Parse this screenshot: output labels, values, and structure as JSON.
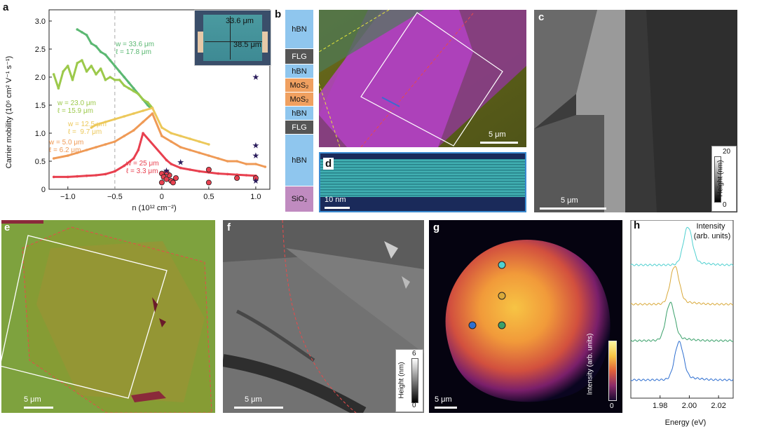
{
  "panel_labels": {
    "a": "a",
    "b": "b",
    "c": "c",
    "d": "d",
    "e": "e",
    "f": "f",
    "g": "g",
    "h": "h"
  },
  "colors": {
    "green": "#5bb872",
    "lime": "#9cc94b",
    "yellow": "#ecc85a",
    "orange": "#ef9a56",
    "red": "#e8404f",
    "navy": "#2b1d5c",
    "cyan": "#4fd0d0",
    "gold": "#d9a93a",
    "teal": "#3aa06a",
    "blue": "#2f6fd0",
    "hbn": "#8fc6ee",
    "flg": "#555555",
    "mos2": "#f0a060",
    "sio2": "#c08bc0"
  },
  "panel_a": {
    "ylabel": "Carrier mobility (10⁶ cm² V⁻¹ s⁻¹)",
    "xlabel": "n (10¹² cm⁻²)",
    "xticks": [
      "−1.0",
      "−0.5",
      "0",
      "0.5",
      "1.0"
    ],
    "yticks": [
      "0",
      "0.5",
      "1.0",
      "1.5",
      "2.0",
      "2.5",
      "3.0"
    ],
    "annotations": [
      {
        "w": "w = 33.6 μm",
        "l": "ℓ = 17.8 μm",
        "color": "#5bb872"
      },
      {
        "w": "w = 23.0 μm",
        "l": "ℓ = 15.9 μm",
        "color": "#9cc94b"
      },
      {
        "w": "w = 12.5 μm",
        "l": "ℓ =  9.7 μm",
        "color": "#ecc85a"
      },
      {
        "w": "w = 5.0 μm",
        "l": "ℓ = 6.2 μm",
        "color": "#ef9a56"
      },
      {
        "w": "w = 25 μm",
        "l": "ℓ = 3.3 μm",
        "color": "#e8404f"
      }
    ],
    "inset": {
      "width": "33.6 μm",
      "length": "38.5 μm"
    }
  },
  "chart_data": [
    {
      "type": "scatter",
      "title": "",
      "xlabel": "n (10¹² cm⁻²)",
      "ylabel": "Carrier mobility (10⁶ cm² V⁻¹ s⁻¹)",
      "xlim": [
        -1.2,
        1.15
      ],
      "ylim": [
        0,
        3.2
      ],
      "vline": -0.5,
      "series": [
        {
          "name": "w = 33.6 μm, ℓ = 17.8 μm",
          "color": "#5bb872",
          "x": [
            -0.9,
            -0.85,
            -0.8,
            -0.75,
            -0.7,
            -0.65,
            -0.6,
            -0.55,
            -0.5,
            -0.45,
            -0.4,
            -0.35,
            -0.3,
            -0.25,
            -0.2,
            -0.15,
            -0.12
          ],
          "y": [
            2.85,
            2.8,
            2.75,
            2.6,
            2.55,
            2.45,
            2.4,
            2.3,
            2.2,
            2.1,
            2.0,
            1.9,
            1.8,
            1.7,
            1.6,
            1.5,
            1.45
          ]
        },
        {
          "name": "w = 23.0 μm, ℓ = 15.9 μm",
          "color": "#9cc94b",
          "x": [
            -1.15,
            -1.1,
            -1.05,
            -1.0,
            -0.95,
            -0.9,
            -0.85,
            -0.8,
            -0.75,
            -0.7,
            -0.65,
            -0.6,
            -0.55,
            -0.5,
            -0.45,
            -0.4,
            -0.35,
            -0.3,
            -0.25,
            -0.2,
            -0.15,
            -0.1
          ],
          "y": [
            2.05,
            1.8,
            2.1,
            2.2,
            1.95,
            2.25,
            2.3,
            2.1,
            2.2,
            2.05,
            2.15,
            1.95,
            2.0,
            1.95,
            1.95,
            1.85,
            1.8,
            1.75,
            1.7,
            1.6,
            1.55,
            1.45
          ]
        },
        {
          "name": "w = 12.5 μm, ℓ = 9.7 μm",
          "color": "#ecc85a",
          "x": [
            -0.75,
            -0.7,
            -0.6,
            -0.5,
            -0.4,
            -0.3,
            -0.2,
            -0.1,
            0.0,
            0.1,
            0.2,
            0.3,
            0.4,
            0.5
          ],
          "y": [
            1.1,
            1.15,
            1.2,
            1.25,
            1.3,
            1.35,
            1.4,
            1.45,
            1.1,
            1.0,
            0.95,
            0.9,
            0.85,
            0.8
          ]
        },
        {
          "name": "w = 5.0 μm, ℓ = 6.2 μm",
          "color": "#ef9a56",
          "x": [
            -1.15,
            -1.0,
            -0.9,
            -0.8,
            -0.7,
            -0.6,
            -0.5,
            -0.4,
            -0.3,
            -0.2,
            -0.1,
            0.0,
            0.1,
            0.2,
            0.3,
            0.4,
            0.5,
            0.6,
            0.7,
            0.8,
            0.9,
            1.0,
            1.1
          ],
          "y": [
            0.55,
            0.6,
            0.65,
            0.7,
            0.75,
            0.8,
            0.85,
            0.95,
            1.05,
            1.2,
            1.35,
            0.95,
            0.85,
            0.75,
            0.7,
            0.65,
            0.6,
            0.55,
            0.5,
            0.5,
            0.45,
            0.45,
            0.4
          ]
        },
        {
          "name": "w = 25 μm, ℓ = 3.3 μm",
          "color": "#e8404f",
          "x": [
            -1.15,
            -1.0,
            -0.9,
            -0.8,
            -0.7,
            -0.6,
            -0.5,
            -0.4,
            -0.3,
            -0.25,
            -0.2,
            0.05,
            0.1,
            0.2,
            0.3,
            0.4,
            0.5,
            0.6,
            0.7,
            0.8,
            0.9,
            1.0
          ],
          "y": [
            0.22,
            0.22,
            0.23,
            0.24,
            0.25,
            0.27,
            0.32,
            0.42,
            0.55,
            0.7,
            1.0,
            0.52,
            0.45,
            0.38,
            0.35,
            0.32,
            0.3,
            0.28,
            0.27,
            0.26,
            0.25,
            0.24
          ]
        },
        {
          "name": "",
          "marker": "circle",
          "color": "#e8404f",
          "x": [
            0.0,
            0.02,
            0.05,
            0.08,
            0.1,
            0.12,
            0.15,
            0.0,
            0.05,
            0.5,
            0.5,
            0.8,
            1.0
          ],
          "y": [
            0.28,
            0.22,
            0.18,
            0.25,
            0.15,
            0.12,
            0.2,
            0.12,
            0.3,
            0.35,
            0.12,
            0.2,
            0.2
          ]
        },
        {
          "name": "",
          "marker": "star",
          "color": "#2b1d5c",
          "x": [
            1.0,
            1.0,
            1.0,
            0.2,
            0.05,
            1.0
          ],
          "y": [
            2.0,
            0.78,
            0.6,
            0.48,
            0.33,
            0.15
          ]
        }
      ]
    },
    {
      "type": "line",
      "title": "",
      "xlabel": "Energy (eV)",
      "ylabel": "",
      "xlim": [
        1.96,
        2.03
      ],
      "xticks": [
        1.98,
        2.0,
        2.02
      ],
      "series": [
        {
          "name": "",
          "color": "#4fd0d0",
          "peak": 1.999
        },
        {
          "name": "",
          "color": "#d9a93a",
          "peak": 1.99
        },
        {
          "name": "",
          "color": "#3aa06a",
          "peak": 1.987
        },
        {
          "name": "",
          "color": "#2f6fd0",
          "peak": 1.993
        }
      ]
    }
  ],
  "panel_b": {
    "layers": [
      "hBN",
      "FLG",
      "hBN",
      "MoS₂",
      "MoS₂",
      "hBN",
      "FLG",
      "hBN",
      "SiO₂"
    ],
    "scale": "5 μm"
  },
  "panel_c": {
    "scale": "5 μm",
    "cbar_title": "Height (nm)",
    "cbar_max": "20",
    "cbar_min": "0"
  },
  "panel_d": {
    "scale": "10 nm"
  },
  "panel_e": {
    "scale": "5 μm"
  },
  "panel_f": {
    "scale": "5 μm",
    "cbar_title": "Height (nm)",
    "cbar_max": "6",
    "cbar_min": "0"
  },
  "panel_g": {
    "scale": "5 μm",
    "cbar_title": "Intensity (arb. units)",
    "cbar_min": "0"
  },
  "panel_h": {
    "ylabel_l1": "Intensity",
    "ylabel_l2": "(arb. units)",
    "xlabel": "Energy (eV)",
    "xticks": [
      "1.98",
      "2.00",
      "2.02"
    ]
  }
}
